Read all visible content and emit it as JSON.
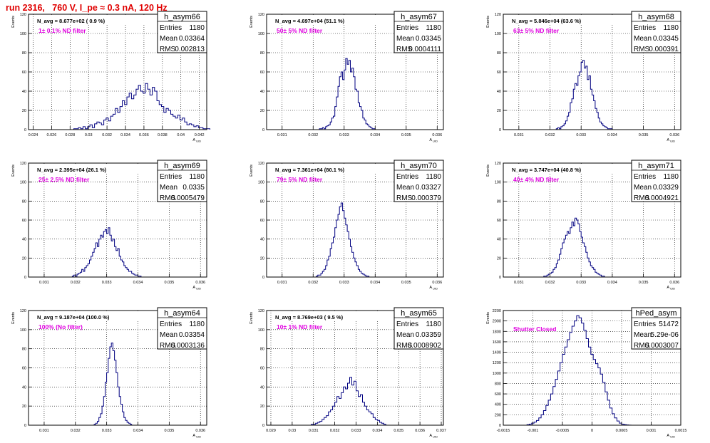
{
  "title": "run 2316,   760 V, I_pe ≈ 0.3 nA, 120 Hz",
  "colors": {
    "title": "#e00000",
    "hist": "#000080",
    "label": "#e000e0",
    "grid": "#000000"
  },
  "panel_common": {
    "ylabel": "Events",
    "xlabel": "A_UID",
    "stat_entries_label": "Entries",
    "stat_mean_label": "Mean",
    "stat_rms_label": "RMS"
  },
  "chart_data": [
    {
      "type": "histogram",
      "name": "h_asym66",
      "navg": "N_avg = 8.677e+02 ( 0.9 %)",
      "label": "1± 0.1% ND filter",
      "entries": "1180",
      "mean": "0.03364",
      "rms": "0.002813",
      "xlim": [
        0.0235,
        0.0428
      ],
      "ylim": [
        0,
        120
      ],
      "xticks": [
        0.024,
        0.026,
        0.028,
        0.03,
        0.032,
        0.034,
        0.036,
        0.038,
        0.04,
        0.042
      ],
      "xtick_labels": [
        "0.024",
        "0.026",
        "0.028",
        "0.03",
        "0.032",
        "0.034",
        "0.036",
        "0.038",
        "0.04",
        "0.042"
      ],
      "yticks": [
        0,
        20,
        40,
        60,
        80,
        100,
        120
      ],
      "ytick_labels": [
        "0",
        "20",
        "40",
        "60",
        "80",
        "100",
        "120"
      ],
      "bin_start": 0.0284,
      "bin_width": 0.00025,
      "values": [
        1,
        1,
        2,
        1,
        3,
        1,
        3,
        5,
        2,
        6,
        8,
        7,
        5,
        10,
        12,
        9,
        14,
        16,
        22,
        18,
        24,
        30,
        26,
        34,
        38,
        32,
        36,
        42,
        46,
        40,
        38,
        48,
        42,
        36,
        44,
        40,
        30,
        26,
        24,
        18,
        22,
        20,
        16,
        14,
        12,
        15,
        10,
        12,
        8,
        5,
        6,
        5,
        3,
        4,
        2,
        2,
        1,
        1,
        1
      ]
    },
    {
      "type": "histogram",
      "name": "h_asym67",
      "navg": "N_avg = 4.697e+04 (51.1 %)",
      "label": "50± 5% ND filter",
      "entries": "1180",
      "mean": "0.03345",
      "rms": "0.0004111",
      "xlim": [
        0.0305,
        0.0362
      ],
      "ylim": [
        0,
        120
      ],
      "xticks": [
        0.031,
        0.032,
        0.033,
        0.034,
        0.035,
        0.036
      ],
      "xtick_labels": [
        "0.031",
        "0.032",
        "0.033",
        "0.034",
        "0.035",
        "0.036"
      ],
      "yticks": [
        0,
        20,
        40,
        60,
        80,
        100,
        120
      ],
      "ytick_labels": [
        "0",
        "20",
        "40",
        "60",
        "80",
        "100",
        "120"
      ],
      "bin_start": 0.0322,
      "bin_width": 5e-05,
      "values": [
        1,
        1,
        2,
        1,
        3,
        4,
        5,
        8,
        12,
        14,
        24,
        34,
        45,
        55,
        60,
        52,
        62,
        74,
        68,
        72,
        60,
        64,
        55,
        42,
        40,
        28,
        24,
        20,
        12,
        10,
        6,
        5,
        3,
        2,
        1,
        1
      ]
    },
    {
      "type": "histogram",
      "name": "h_asym68",
      "navg": "N_avg = 5.846e+04 (63.6 %)",
      "label": "63± 5% ND filter",
      "entries": "1180",
      "mean": "0.03345",
      "rms": "0.000391",
      "xlim": [
        0.0305,
        0.0362
      ],
      "ylim": [
        0,
        120
      ],
      "xticks": [
        0.031,
        0.032,
        0.033,
        0.034,
        0.035,
        0.036
      ],
      "xtick_labels": [
        "0.031",
        "0.032",
        "0.033",
        "0.034",
        "0.035",
        "0.036"
      ],
      "yticks": [
        0,
        20,
        40,
        60,
        80,
        100,
        120
      ],
      "ytick_labels": [
        "0",
        "20",
        "40",
        "60",
        "80",
        "100",
        "120"
      ],
      "bin_start": 0.0322,
      "bin_width": 5e-05,
      "values": [
        1,
        2,
        1,
        3,
        4,
        6,
        9,
        14,
        18,
        28,
        32,
        42,
        48,
        46,
        56,
        60,
        70,
        72,
        64,
        66,
        52,
        56,
        42,
        36,
        30,
        22,
        18,
        12,
        8,
        6,
        4,
        3,
        2,
        1,
        1,
        1
      ]
    },
    {
      "type": "histogram",
      "name": "h_asym69",
      "navg": "N_avg = 2.395e+04 (26.1 %)",
      "label": "25± 2.5% ND filter",
      "entries": "1180",
      "mean": "0.0335",
      "rms": "0.0005479",
      "xlim": [
        0.0305,
        0.0362
      ],
      "ylim": [
        0,
        120
      ],
      "xticks": [
        0.031,
        0.032,
        0.033,
        0.034,
        0.035,
        0.036
      ],
      "xtick_labels": [
        "0.031",
        "0.032",
        "0.033",
        "0.034",
        "0.035",
        "0.036"
      ],
      "yticks": [
        0,
        20,
        40,
        60,
        80,
        100,
        120
      ],
      "ytick_labels": [
        "0",
        "20",
        "40",
        "60",
        "80",
        "100",
        "120"
      ],
      "bin_start": 0.0319,
      "bin_width": 5e-05,
      "values": [
        1,
        2,
        1,
        3,
        4,
        5,
        8,
        6,
        10,
        12,
        14,
        18,
        22,
        26,
        30,
        36,
        32,
        40,
        44,
        42,
        48,
        50,
        46,
        52,
        44,
        38,
        40,
        32,
        28,
        30,
        22,
        18,
        16,
        12,
        10,
        8,
        6,
        6,
        4,
        3,
        2,
        2,
        1,
        1
      ]
    },
    {
      "type": "histogram",
      "name": "h_asym70",
      "navg": "N_avg = 7.361e+04 (80.1 %)",
      "label": "79± 5% ND filter",
      "entries": "1180",
      "mean": "0.03327",
      "rms": "0.000379",
      "xlim": [
        0.0305,
        0.0362
      ],
      "ylim": [
        0,
        120
      ],
      "xticks": [
        0.031,
        0.032,
        0.033,
        0.034,
        0.035,
        0.036
      ],
      "xtick_labels": [
        "0.031",
        "0.032",
        "0.033",
        "0.034",
        "0.035",
        "0.036"
      ],
      "yticks": [
        0,
        20,
        40,
        60,
        80,
        100,
        120
      ],
      "ytick_labels": [
        "0",
        "20",
        "40",
        "60",
        "80",
        "100",
        "120"
      ],
      "bin_start": 0.0321,
      "bin_width": 5e-05,
      "values": [
        1,
        2,
        2,
        4,
        6,
        8,
        12,
        18,
        22,
        30,
        36,
        42,
        52,
        60,
        66,
        74,
        78,
        70,
        62,
        55,
        48,
        40,
        32,
        26,
        20,
        16,
        12,
        8,
        6,
        4,
        3,
        2,
        1,
        1
      ]
    },
    {
      "type": "histogram",
      "name": "h_asym71",
      "navg": "N_avg = 3.747e+04 (40.8 %)",
      "label": "40± 4% ND filter",
      "entries": "1180",
      "mean": "0.03329",
      "rms": "0.0004921",
      "xlim": [
        0.0305,
        0.0362
      ],
      "ylim": [
        0,
        120
      ],
      "xticks": [
        0.031,
        0.032,
        0.033,
        0.034,
        0.035,
        0.036
      ],
      "xtick_labels": [
        "0.031",
        "0.032",
        "0.033",
        "0.034",
        "0.035",
        "0.036"
      ],
      "yticks": [
        0,
        20,
        40,
        60,
        80,
        100,
        120
      ],
      "ytick_labels": [
        "0",
        "20",
        "40",
        "60",
        "80",
        "100",
        "120"
      ],
      "bin_start": 0.0318,
      "bin_width": 5e-05,
      "values": [
        1,
        1,
        2,
        3,
        4,
        5,
        8,
        10,
        14,
        18,
        24,
        30,
        36,
        40,
        44,
        48,
        46,
        52,
        58,
        54,
        62,
        60,
        56,
        48,
        42,
        36,
        32,
        26,
        20,
        16,
        12,
        10,
        8,
        5,
        4,
        3,
        2,
        1,
        1
      ]
    },
    {
      "type": "histogram",
      "name": "h_asym64",
      "navg": "N_avg = 9.187e+04 (100.0 %)",
      "label": "100% (No filter)",
      "entries": "1180",
      "mean": "0.03354",
      "rms": "0.0003136",
      "xlim": [
        0.0305,
        0.0362
      ],
      "ylim": [
        0,
        120
      ],
      "xticks": [
        0.031,
        0.032,
        0.033,
        0.034,
        0.035,
        0.036
      ],
      "xtick_labels": [
        "0.031",
        "0.032",
        "0.033",
        "0.034",
        "0.035",
        "0.036"
      ],
      "yticks": [
        0,
        20,
        40,
        60,
        80,
        100,
        120
      ],
      "ytick_labels": [
        "0",
        "20",
        "40",
        "60",
        "80",
        "100",
        "120"
      ],
      "bin_start": 0.0326,
      "bin_width": 5e-05,
      "values": [
        1,
        2,
        4,
        8,
        12,
        20,
        30,
        45,
        55,
        70,
        82,
        86,
        78,
        68,
        55,
        40,
        30,
        22,
        14,
        8,
        5,
        3,
        2,
        1
      ]
    },
    {
      "type": "histogram",
      "name": "h_asym65",
      "navg": "N_avg = 8.769e+03 ( 9.5 %)",
      "label": "10± 1% ND filter",
      "entries": "1180",
      "mean": "0.03359",
      "rms": "0.0008902",
      "xlim": [
        0.0288,
        0.0371
      ],
      "ylim": [
        0,
        120
      ],
      "xticks": [
        0.029,
        0.03,
        0.031,
        0.032,
        0.033,
        0.034,
        0.035,
        0.036,
        0.037
      ],
      "xtick_labels": [
        "0.029",
        "0.03",
        "0.031",
        "0.032",
        "0.033",
        "0.034",
        "0.035",
        "0.036",
        "0.037"
      ],
      "yticks": [
        0,
        20,
        40,
        60,
        80,
        100,
        120
      ],
      "ytick_labels": [
        "0",
        "20",
        "40",
        "60",
        "80",
        "100",
        "120"
      ],
      "bin_start": 0.0309,
      "bin_width": 0.0001,
      "values": [
        1,
        1,
        2,
        3,
        4,
        6,
        8,
        10,
        14,
        16,
        20,
        24,
        30,
        28,
        34,
        40,
        38,
        44,
        50,
        42,
        46,
        36,
        30,
        32,
        24,
        20,
        16,
        14,
        12,
        8,
        6,
        5,
        3,
        2,
        1
      ]
    },
    {
      "type": "histogram",
      "name": "hPed_asym",
      "navg": "",
      "label": "Shutter Closed",
      "entries": "51472",
      "mean": "5.29e-06",
      "rms": "0.0003007",
      "xlim": [
        -0.0015,
        0.0015
      ],
      "ylim": [
        0,
        2200
      ],
      "xticks": [
        -0.0015,
        -0.001,
        -0.0005,
        0,
        0.0005,
        0.001,
        0.0015
      ],
      "xtick_labels": [
        "-0.0015",
        "-0.001",
        "-0.0005",
        "0",
        "0.0005",
        "0.001",
        "0.0015"
      ],
      "yticks": [
        0,
        200,
        400,
        600,
        800,
        1000,
        1200,
        1400,
        1600,
        1800,
        2000,
        2200
      ],
      "ytick_labels": [
        "0",
        "200",
        "400",
        "600",
        "800",
        "1000",
        "1200",
        "1400",
        "1600",
        "1800",
        "2000",
        "2200"
      ],
      "bin_start": -0.0011,
      "bin_width": 4e-05,
      "values": [
        10,
        20,
        40,
        60,
        90,
        140,
        200,
        280,
        380,
        480,
        600,
        740,
        880,
        1040,
        1200,
        1360,
        1500,
        1640,
        1780,
        1900,
        2000,
        2100,
        2060,
        1960,
        1820,
        1660,
        1500,
        1360,
        1260,
        1180,
        1100,
        980,
        820,
        640,
        480,
        330,
        220,
        140,
        80,
        40,
        20,
        10,
        5,
        2
      ]
    }
  ]
}
